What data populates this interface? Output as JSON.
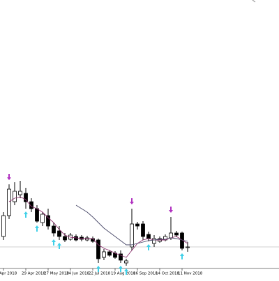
{
  "chart_data": {
    "type": "candlestick",
    "categories": [
      "Apr 2018",
      null,
      null,
      null,
      "29 Apr 2018",
      null,
      null,
      null,
      "27 May 2018",
      null,
      null,
      null,
      "24 Jun 2018",
      null,
      null,
      null,
      "22 Jul 2018",
      null,
      null,
      null,
      "19 Aug 2018",
      null,
      null,
      null,
      "16 Sep 2018",
      null,
      null,
      null,
      "14 Oct 2018",
      null,
      null,
      null,
      "11 Nov 2018",
      null
    ],
    "open": [
      45,
      75,
      95,
      105,
      107,
      95,
      85,
      65,
      75,
      60,
      53,
      45,
      41,
      45,
      44,
      40,
      42,
      40,
      15,
      23,
      21,
      20,
      7,
      30,
      63,
      63,
      48,
      35,
      38,
      40,
      43,
      50,
      50,
      30
    ],
    "high": [
      80,
      120,
      123,
      125,
      115,
      100,
      90,
      80,
      85,
      65,
      60,
      50,
      50,
      48,
      47,
      46,
      45,
      42,
      27,
      25,
      24,
      25,
      13,
      85,
      66,
      67,
      52,
      47,
      45,
      48,
      73,
      53,
      52,
      37
    ],
    "low": [
      40,
      70,
      90,
      100,
      85,
      80,
      65,
      60,
      55,
      45,
      40,
      37,
      39,
      38,
      38,
      38,
      36,
      7,
      11,
      16,
      13,
      7,
      3,
      25,
      55,
      40,
      38,
      30,
      36,
      38,
      40,
      44,
      25,
      23
    ],
    "close": [
      75,
      113,
      110,
      110,
      95,
      85,
      67,
      77,
      60,
      50,
      45,
      40,
      47,
      40,
      41,
      43,
      38,
      13,
      23,
      18,
      15,
      11,
      10,
      63,
      60,
      45,
      42,
      42,
      42,
      45,
      50,
      47,
      28,
      30
    ],
    "up_color": "#ffffff",
    "down_color": "#000000",
    "lines": [
      {
        "color": "#8b2f6b",
        "values": [
          null,
          95,
          100,
          102,
          98,
          88,
          85,
          80,
          72,
          65,
          55,
          47,
          44,
          43,
          42,
          42,
          42,
          33,
          28,
          25,
          21,
          18,
          15,
          25,
          35,
          40,
          42,
          40,
          40,
          40,
          43,
          45,
          40,
          35
        ]
      },
      {
        "color": "#4a4a6a",
        "values": [
          null,
          null,
          null,
          null,
          null,
          null,
          null,
          null,
          null,
          null,
          null,
          null,
          null,
          90,
          85,
          80,
          73,
          65,
          57,
          51,
          45,
          39,
          33,
          33,
          35,
          37,
          39,
          40,
          41,
          41,
          43,
          42,
          40,
          38
        ]
      }
    ],
    "fractals_up": {
      "color": "#b030c0",
      "values": [
        null,
        120,
        null,
        null,
        null,
        null,
        null,
        null,
        null,
        null,
        null,
        null,
        null,
        null,
        null,
        null,
        null,
        null,
        null,
        null,
        null,
        null,
        null,
        85,
        null,
        null,
        null,
        null,
        null,
        null,
        73,
        null,
        null,
        null
      ]
    },
    "fractals_down": {
      "color": "#40d0e8",
      "values": [
        null,
        null,
        null,
        null,
        85,
        null,
        65,
        null,
        null,
        45,
        40,
        null,
        null,
        null,
        null,
        null,
        null,
        7,
        null,
        null,
        null,
        7,
        3,
        null,
        null,
        null,
        38,
        null,
        null,
        null,
        null,
        null,
        25,
        null
      ]
    },
    "price_line": {
      "value": 30,
      "color": "#c0c0c0"
    },
    "ylim": [
      0,
      385
    ]
  }
}
